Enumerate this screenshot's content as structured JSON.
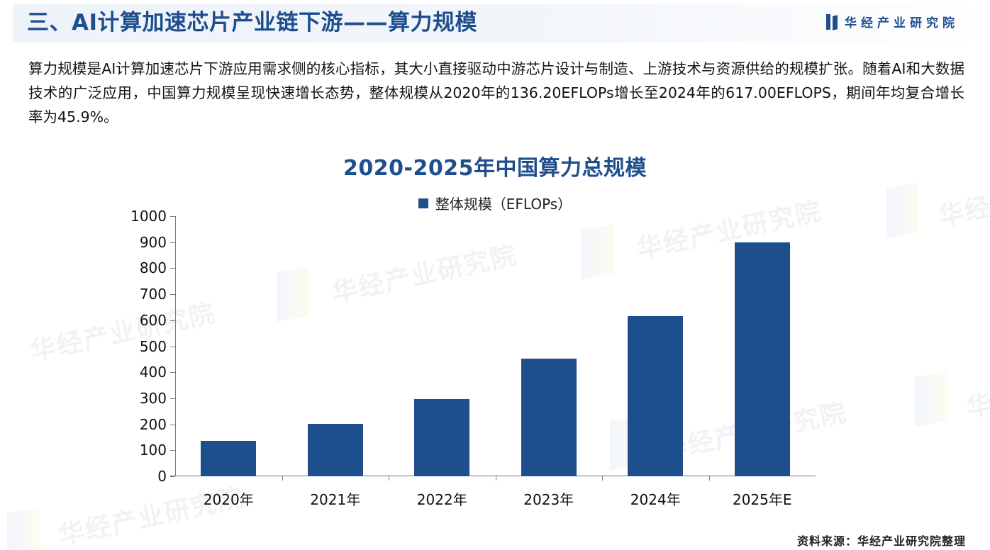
{
  "header": {
    "title": "三、AI计算加速芯片产业链下游——算力规模",
    "brand": "华经产业研究院",
    "brand_logo_icon": "brand-logo-icon"
  },
  "intro": {
    "text": "算力规模是AI计算加速芯片下游应用需求侧的核心指标，其大小直接驱动中游芯片设计与制造、上游技术与资源供给的规模扩张。随着AI和大数据技术的广泛应用，中国算力规模呈现快速增长态势，整体规模从2020年的136.20EFLOPs增长至2024年的617.00EFLOPS，期间年均复合增长率为45.9%。"
  },
  "watermark": {
    "text": "华经产业研究院"
  },
  "colors": {
    "accent": "#1f4e8c",
    "bar": "#1f4e8c",
    "axis": "#7a7a7a"
  },
  "chart_data": {
    "type": "bar",
    "title": "2020-2025年中国算力总规模",
    "legend": [
      "整体规模（EFLOPs）"
    ],
    "legend_position": "top",
    "xlabel": "",
    "ylabel": "",
    "ylim": [
      0,
      1000
    ],
    "yticks": [
      "0",
      "100",
      "200",
      "300",
      "400",
      "500",
      "600",
      "700",
      "800",
      "900",
      "1000"
    ],
    "grid": false,
    "categories": [
      "2020年",
      "2021年",
      "2022年",
      "2023年",
      "2024年",
      "2025年E"
    ],
    "series": [
      {
        "name": "整体规模（EFLOPs）",
        "values": [
          136.2,
          202,
          297,
          452,
          617,
          900
        ]
      }
    ]
  },
  "footer": {
    "source": "资料来源：华经产业研究院整理"
  }
}
